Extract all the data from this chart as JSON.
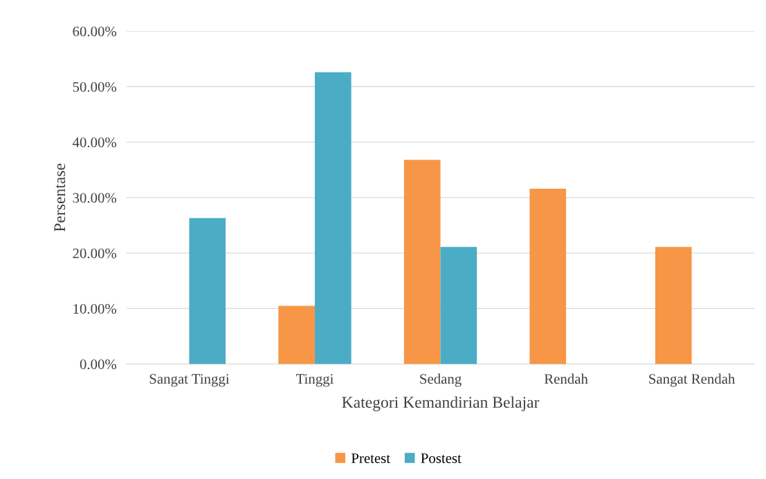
{
  "chart_data": {
    "type": "bar",
    "xlabel": "Kategori Kemandirian Belajar",
    "ylabel": "Persentase",
    "categories": [
      "Sangat Tinggi",
      "Tinggi",
      "Sedang",
      "Rendah",
      "Sangat Rendah"
    ],
    "series": [
      {
        "name": "Pretest",
        "color": "#f79646",
        "values": [
          0,
          10.5,
          36.8,
          31.6,
          21.1
        ]
      },
      {
        "name": "Postest",
        "color": "#4bacc6",
        "values": [
          26.3,
          52.6,
          21.1,
          0,
          0
        ]
      }
    ],
    "ylim": [
      0,
      60
    ],
    "yticks": [
      {
        "value": 0,
        "label": "0.00%"
      },
      {
        "value": 10,
        "label": "10.00%"
      },
      {
        "value": 20,
        "label": "20.00%"
      },
      {
        "value": 30,
        "label": "30.00%"
      },
      {
        "value": 40,
        "label": "40.00%"
      },
      {
        "value": 50,
        "label": "50.00%"
      },
      {
        "value": 60,
        "label": "60.00%"
      }
    ],
    "grid": "y",
    "legend": "bottom"
  }
}
